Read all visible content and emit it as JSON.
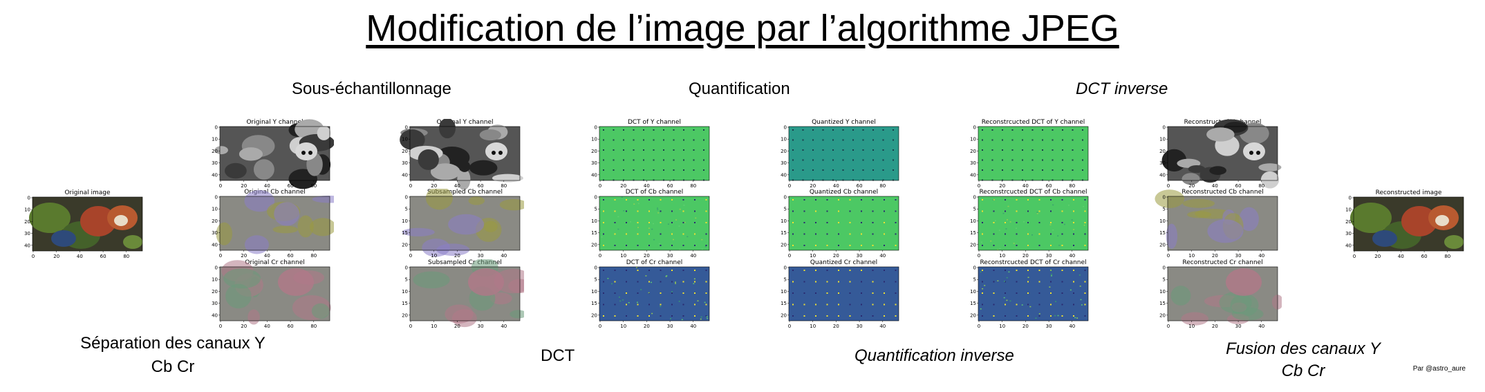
{
  "title": "Modification de l’image par l’algorithme JPEG",
  "stages": {
    "sous_echantillonnage": "Sous-échantillonnage",
    "quantification": "Quantification",
    "dct_inverse": "DCT inverse",
    "separation_line1": "Séparation des canaux Y",
    "separation_line2": "Cb Cr",
    "dct": "DCT",
    "quantification_inverse": "Quantification inverse",
    "fusion_line1": "Fusion des canaux Y",
    "fusion_line2": "Cb Cr"
  },
  "credit": "Par @astro_aure",
  "colors": {
    "viridis_mid": "#2a9a8a",
    "viridis_green": "#4cc864",
    "viridis_blue": "#355a98",
    "chroma_gray": "#8a8a84",
    "chroma_olive": "#9a9a40",
    "chroma_pink": "#b07888",
    "chroma_purple": "#8a7ec8"
  },
  "panels": [
    {
      "id": "orig",
      "title": "Original image",
      "kind": "photo",
      "yt": [
        "0",
        "10",
        "20",
        "30",
        "40"
      ],
      "xt": [
        "0",
        "20",
        "40",
        "60",
        "80"
      ]
    },
    {
      "id": "oy",
      "title": "Original Y channel",
      "kind": "gray",
      "yt": [
        "0",
        "10",
        "20",
        "30",
        "40"
      ],
      "xt": [
        "0",
        "20",
        "40",
        "60",
        "80"
      ]
    },
    {
      "id": "ocb",
      "title": "Original Cb channel",
      "kind": "cb",
      "yt": [
        "0",
        "10",
        "20",
        "30",
        "40"
      ],
      "xt": [
        "0",
        "20",
        "40",
        "60",
        "80"
      ]
    },
    {
      "id": "ocr",
      "title": "Original Cr channel",
      "kind": "cr",
      "yt": [
        "0",
        "10",
        "20",
        "30",
        "40"
      ],
      "xt": [
        "0",
        "20",
        "40",
        "60",
        "80"
      ]
    },
    {
      "id": "sy",
      "title": "Original Y channel",
      "kind": "gray",
      "yt": [
        "0",
        "10",
        "20",
        "30",
        "40"
      ],
      "xt": [
        "0",
        "20",
        "40",
        "60",
        "80"
      ]
    },
    {
      "id": "scb",
      "title": "Subsampled Cb channel",
      "kind": "cb",
      "yt": [
        "0",
        "5",
        "10",
        "15",
        "20"
      ],
      "xt": [
        "0",
        "10",
        "20",
        "30",
        "40"
      ]
    },
    {
      "id": "scr",
      "title": "Subsampled Cr channel",
      "kind": "cr",
      "yt": [
        "0",
        "5",
        "10",
        "15",
        "20"
      ],
      "xt": [
        "0",
        "10",
        "20",
        "30",
        "40"
      ]
    },
    {
      "id": "dy",
      "title": "DCT of Y channel",
      "kind": "dcty",
      "yt": [
        "0",
        "10",
        "20",
        "30",
        "40"
      ],
      "xt": [
        "0",
        "20",
        "40",
        "60",
        "80"
      ]
    },
    {
      "id": "dcb",
      "title": "DCT of Cb channel",
      "kind": "dctcb",
      "yt": [
        "0",
        "5",
        "10",
        "15",
        "20"
      ],
      "xt": [
        "0",
        "10",
        "20",
        "30",
        "40"
      ]
    },
    {
      "id": "dcr",
      "title": "DCT of Cr channel",
      "kind": "dctcr",
      "yt": [
        "0",
        "5",
        "10",
        "15",
        "20"
      ],
      "xt": [
        "0",
        "10",
        "20",
        "30",
        "40"
      ]
    },
    {
      "id": "qy",
      "title": "Quantized Y channel",
      "kind": "qy",
      "yt": [
        "0",
        "10",
        "20",
        "30",
        "40"
      ],
      "xt": [
        "0",
        "20",
        "40",
        "60",
        "80"
      ]
    },
    {
      "id": "qcb",
      "title": "Quantized Cb channel",
      "kind": "qcb",
      "yt": [
        "0",
        "5",
        "10",
        "15",
        "20"
      ],
      "xt": [
        "0",
        "10",
        "20",
        "30",
        "40"
      ]
    },
    {
      "id": "qcr",
      "title": "Quantized Cr channel",
      "kind": "qcr",
      "yt": [
        "0",
        "5",
        "10",
        "15",
        "20"
      ],
      "xt": [
        "0",
        "10",
        "20",
        "30",
        "40"
      ]
    },
    {
      "id": "ry",
      "title": "Reconstrcucted DCT of Y channel",
      "kind": "dcty",
      "yt": [
        "0",
        "10",
        "20",
        "30",
        "40"
      ],
      "xt": [
        "0",
        "20",
        "40",
        "60",
        "80"
      ]
    },
    {
      "id": "rcb",
      "title": "Reconstrcucted DCT of Cb channel",
      "kind": "dctcb",
      "yt": [
        "0",
        "5",
        "10",
        "15",
        "20"
      ],
      "xt": [
        "0",
        "10",
        "20",
        "30",
        "40"
      ]
    },
    {
      "id": "rcr",
      "title": "Reconstrcucted DCT of Cr channel",
      "kind": "dctcr",
      "yt": [
        "0",
        "5",
        "10",
        "15",
        "20"
      ],
      "xt": [
        "0",
        "10",
        "20",
        "30",
        "40"
      ]
    },
    {
      "id": "iy",
      "title": "Reconstructed Y channel",
      "kind": "gray",
      "yt": [
        "0",
        "10",
        "20",
        "30",
        "40"
      ],
      "xt": [
        "0",
        "20",
        "40",
        "60",
        "80"
      ]
    },
    {
      "id": "icb",
      "title": "Reconstructed Cb channel",
      "kind": "cb",
      "yt": [
        "0",
        "5",
        "10",
        "15",
        "20"
      ],
      "xt": [
        "0",
        "10",
        "20",
        "30",
        "40"
      ]
    },
    {
      "id": "icr",
      "title": "Reconstructed Cr channel",
      "kind": "cr",
      "yt": [
        "0",
        "5",
        "10",
        "15",
        "20"
      ],
      "xt": [
        "0",
        "10",
        "20",
        "30",
        "40"
      ]
    },
    {
      "id": "recon",
      "title": "Reconstructed image",
      "kind": "photo",
      "yt": [
        "0",
        "10",
        "20",
        "30",
        "40"
      ],
      "xt": [
        "0",
        "20",
        "40",
        "60",
        "80"
      ]
    }
  ]
}
